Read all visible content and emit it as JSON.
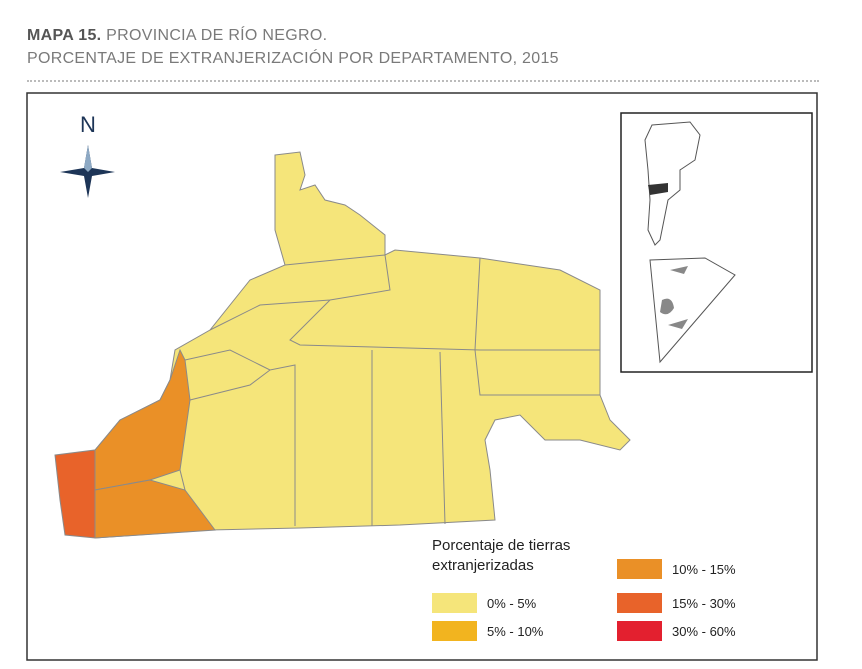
{
  "header": {
    "title_bold": "MAPA 15.",
    "title": "PROVINCIA DE RÍO NEGRO.",
    "subtitle": "PORCENTAJE DE EXTRANJERIZACIÓN POR DEPARTAMENTO, 2015"
  },
  "compass": {
    "north": "N"
  },
  "legend": {
    "title_line1": "Porcentaje de tierras",
    "title_line2": "extranjerizadas",
    "items": [
      {
        "label": "0% - 5%",
        "color": "#f5e57a"
      },
      {
        "label": "5% - 10%",
        "color": "#f2b41f"
      },
      {
        "label": "10% - 15%",
        "color": "#ea9027"
      },
      {
        "label": "15% - 30%",
        "color": "#e8632a"
      },
      {
        "label": "30% - 60%",
        "color": "#e3202f"
      }
    ]
  }
}
